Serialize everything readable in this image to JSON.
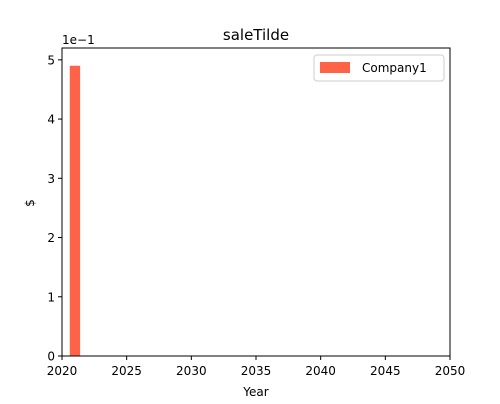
{
  "chart_data": {
    "type": "bar",
    "title": "saleTilde",
    "xlabel": "Year",
    "ylabel": "$",
    "y_offset_label": "1e−1",
    "x": [
      2021
    ],
    "series": [
      {
        "name": "Company1",
        "values": [
          0.49
        ],
        "color": "#ff6347"
      }
    ],
    "xlim": [
      2020,
      2050
    ],
    "ylim": [
      0,
      0.52
    ],
    "xticks": [
      2020,
      2025,
      2030,
      2035,
      2040,
      2045,
      2050
    ],
    "yticks": [
      0,
      0.1,
      0.2,
      0.3,
      0.4,
      0.5
    ],
    "ytick_labels": [
      "0",
      "1",
      "2",
      "3",
      "4",
      "5"
    ],
    "legend_position": "upper right",
    "grid": false
  }
}
